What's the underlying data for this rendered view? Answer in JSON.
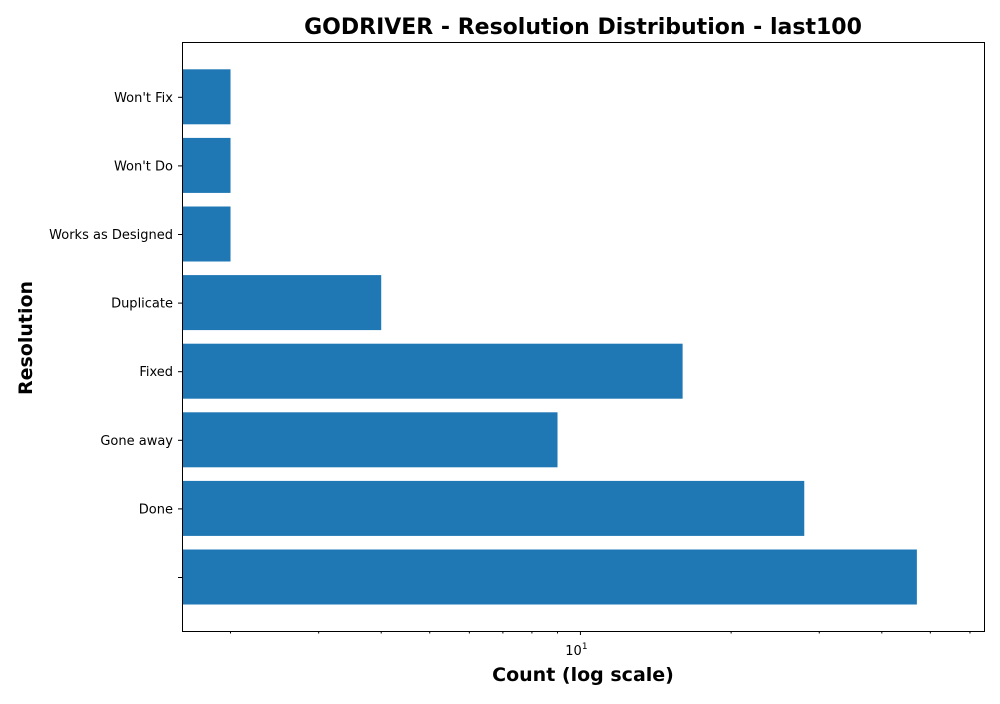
{
  "chart_data": {
    "type": "bar",
    "orientation": "horizontal",
    "title": "GODRIVER - Resolution Distribution - last100",
    "xlabel": "Count (log scale)",
    "ylabel": "Resolution",
    "x_scale": "log",
    "xlim": [
      1.6,
      64
    ],
    "x_tick_labels": [
      {
        "value": 10,
        "base": "10",
        "exp": "1"
      }
    ],
    "categories": [
      "",
      "Done",
      "Gone away",
      "Fixed",
      "Duplicate",
      "Works as Designed",
      "Won't Do",
      "Won't Fix"
    ],
    "values": [
      47,
      28,
      9,
      16,
      4,
      2,
      2,
      2
    ],
    "color": "#1f77b4",
    "grid": false,
    "legend": "none"
  }
}
